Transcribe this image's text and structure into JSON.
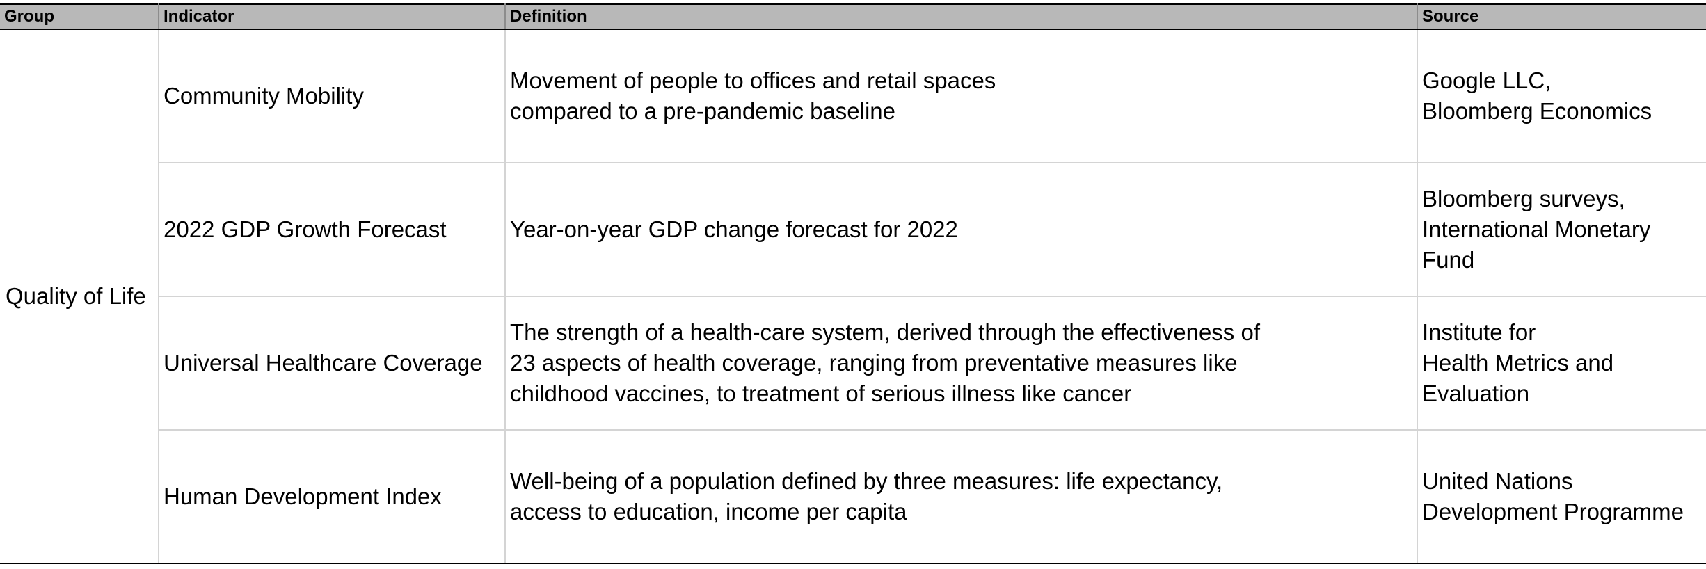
{
  "headers": {
    "group": "Group",
    "indicator": "Indicator",
    "definition": "Definition",
    "source": "Source"
  },
  "group_name": "Quality of Life",
  "rows": [
    {
      "indicator": "Community Mobility",
      "definition": [
        "Movement of people to offices and retail spaces",
        "compared to a pre-pandemic baseline"
      ],
      "source": [
        "Google LLC,",
        "Bloomberg Economics"
      ]
    },
    {
      "indicator": "2022 GDP Growth Forecast",
      "definition": [
        "Year-on-year GDP change forecast for 2022"
      ],
      "source": [
        "Bloomberg surveys,",
        "International Monetary",
        "Fund"
      ]
    },
    {
      "indicator": "Universal Healthcare Coverage",
      "definition": [
        "The strength of a health-care system, derived through the effectiveness of",
        "23 aspects of health coverage, ranging from preventative measures like",
        "childhood vaccines, to treatment of serious illness like cancer"
      ],
      "source": [
        "Institute for",
        "Health Metrics and",
        "Evaluation"
      ]
    },
    {
      "indicator": "Human Development Index",
      "definition": [
        "Well-being of a population defined by three measures: life expectancy,",
        "access to education, income per capita"
      ],
      "source": [
        "United Nations",
        "Development Programme"
      ]
    }
  ]
}
